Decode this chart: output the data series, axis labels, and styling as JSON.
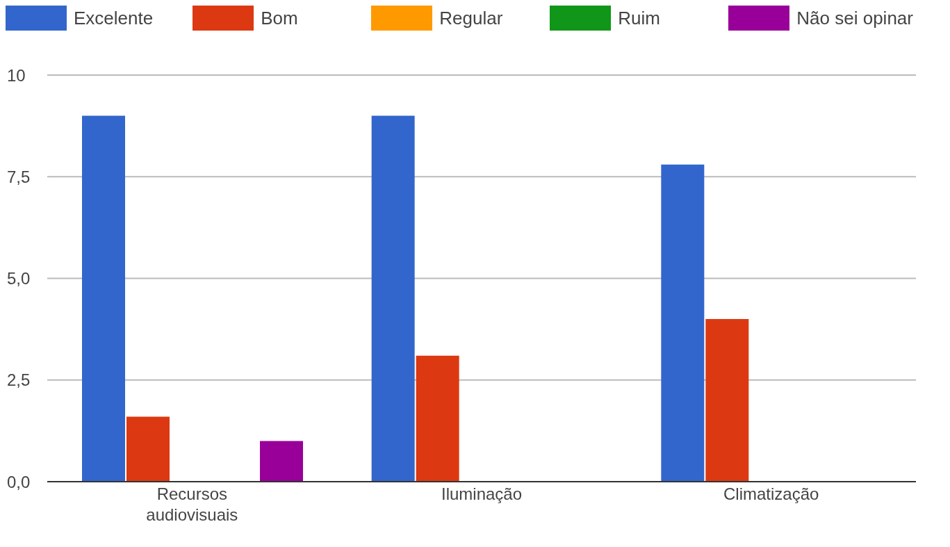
{
  "chart_data": {
    "type": "bar",
    "categories": [
      "Recursos audiovisuais",
      "Iluminação",
      "Climatização"
    ],
    "series": [
      {
        "name": "Excelente",
        "color": "#3366cc",
        "values": [
          9,
          9,
          7.8
        ]
      },
      {
        "name": "Bom",
        "color": "#dc3912",
        "values": [
          1.6,
          3.1,
          4
        ]
      },
      {
        "name": "Regular",
        "color": "#ff9900",
        "values": [
          null,
          null,
          null
        ]
      },
      {
        "name": "Ruim",
        "color": "#109618",
        "values": [
          null,
          null,
          null
        ]
      },
      {
        "name": "Não sei opinar",
        "color": "#990099",
        "values": [
          1,
          null,
          null
        ]
      }
    ],
    "ylim": [
      0,
      10
    ],
    "yticks": [
      {
        "value": 0,
        "label": "0,0"
      },
      {
        "value": 2.5,
        "label": "2,5"
      },
      {
        "value": 5,
        "label": "5,0"
      },
      {
        "value": 7.5,
        "label": "7,5"
      },
      10
    ],
    "grid": "y",
    "legend": "top"
  }
}
